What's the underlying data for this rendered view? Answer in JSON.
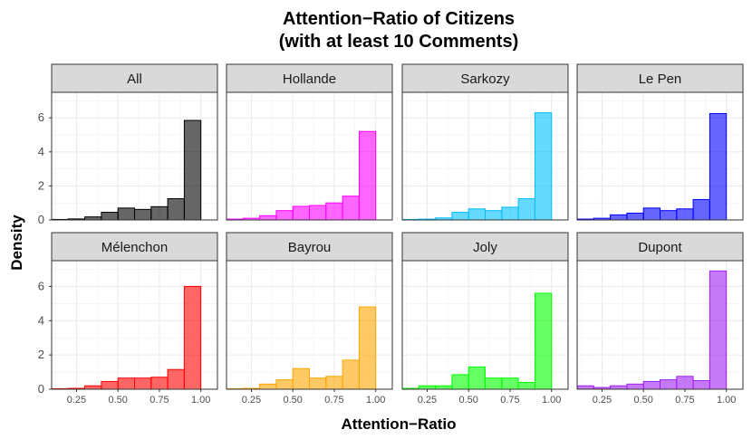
{
  "chart_data": {
    "type": "histogram",
    "title_line1": "Attention−Ratio of Citizens",
    "title_line2": "(with at least 10 Comments)",
    "xlabel": "Attention−Ratio",
    "ylabel": "Density",
    "xlim": [
      0.1,
      1.1
    ],
    "ylim": [
      0,
      7.5
    ],
    "xticks": [
      0.25,
      0.5,
      0.75,
      1.0
    ],
    "xtick_labels": [
      "0.25",
      "0.50",
      "0.75",
      "1.00"
    ],
    "yticks": [
      0,
      2,
      4,
      6
    ],
    "ytick_labels": [
      "0",
      "2",
      "4",
      "6"
    ],
    "bins": [
      0.15,
      0.25,
      0.35,
      0.45,
      0.55,
      0.65,
      0.75,
      0.85,
      0.95
    ],
    "bin_width": 0.1,
    "panels": [
      {
        "name": "All",
        "color": "#000000",
        "values": [
          0.03,
          0.06,
          0.18,
          0.45,
          0.7,
          0.62,
          0.78,
          1.25,
          5.85
        ]
      },
      {
        "name": "Hollande",
        "color": "#ff00ff",
        "values": [
          0.05,
          0.1,
          0.25,
          0.55,
          0.8,
          0.85,
          1.0,
          1.4,
          5.2
        ]
      },
      {
        "name": "Sarkozy",
        "color": "#00bfff",
        "values": [
          0.03,
          0.05,
          0.12,
          0.45,
          0.65,
          0.55,
          0.75,
          1.25,
          6.3
        ]
      },
      {
        "name": "Le Pen",
        "color": "#0000ff",
        "values": [
          0.05,
          0.1,
          0.3,
          0.4,
          0.7,
          0.55,
          0.65,
          1.2,
          6.25
        ]
      },
      {
        "name": "Mélenchon",
        "color": "#ff0000",
        "values": [
          0.03,
          0.05,
          0.2,
          0.45,
          0.65,
          0.65,
          0.7,
          1.15,
          6.0
        ]
      },
      {
        "name": "Bayrou",
        "color": "#ffa500",
        "values": [
          0.03,
          0.05,
          0.3,
          0.55,
          1.2,
          0.65,
          0.75,
          1.7,
          4.8
        ]
      },
      {
        "name": "Joly",
        "color": "#00ff00",
        "values": [
          0.05,
          0.2,
          0.2,
          0.85,
          1.3,
          0.65,
          0.65,
          0.4,
          5.6
        ]
      },
      {
        "name": "Dupont",
        "color": "#a020f0",
        "values": [
          0.2,
          0.1,
          0.2,
          0.3,
          0.45,
          0.55,
          0.75,
          0.5,
          6.9
        ]
      }
    ]
  }
}
